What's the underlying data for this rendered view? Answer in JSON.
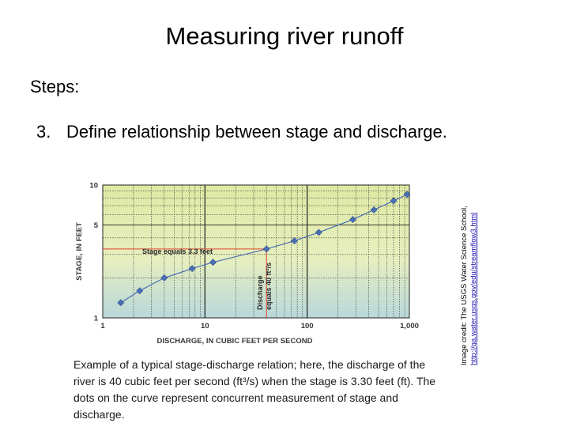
{
  "slide": {
    "title": "Measuring river runoff",
    "steps_label": "Steps:",
    "step3_number": "3.",
    "step3_text": "Define relationship between stage and discharge.",
    "credit_line1": "Image credit: The USGS Water Science School,",
    "credit_link": "http://ga.water.usgs.gov/edu/streamflow3.html",
    "caption": "Example of a typical stage-discharge relation; here, the discharge of the river is 40 cubic feet per second (ft³/s) when the stage is 3.30 feet (ft). The dots on the curve represent concurrent measurement of stage and discharge."
  },
  "chart_data": {
    "type": "line",
    "xlabel": "DISCHARGE, IN CUBIC FEET PER SECOND",
    "ylabel": "STAGE, IN FEET",
    "x_scale": "log",
    "y_scale": "log",
    "xlim": [
      1,
      1000
    ],
    "ylim": [
      1,
      10
    ],
    "x_ticks": [
      {
        "value": 1,
        "label": "1"
      },
      {
        "value": 10,
        "label": "10"
      },
      {
        "value": 100,
        "label": "100"
      },
      {
        "value": 1000,
        "label": "1,000"
      }
    ],
    "y_ticks": [
      {
        "value": 1,
        "label": "1"
      },
      {
        "value": 5,
        "label": "5"
      },
      {
        "value": 10,
        "label": "10"
      }
    ],
    "grid": true,
    "series": [
      {
        "x": [
          1.5,
          2.3,
          4.0,
          7.5,
          12.0,
          40.0,
          75.0,
          130.0,
          280.0,
          450.0,
          700.0,
          950.0
        ],
        "y": [
          1.3,
          1.6,
          2.0,
          2.35,
          2.62,
          3.3,
          3.8,
          4.4,
          5.5,
          6.5,
          7.6,
          8.5
        ],
        "color": "#4a6fb5"
      }
    ],
    "annotations": {
      "stage_label": "Stage equals 3.3 feet",
      "stage_value": 3.3,
      "discharge_label_line1": "Discharge",
      "discharge_label_line2": "equals 40 ft³/s",
      "discharge_value": 40,
      "reference_line_color": "#e0402a"
    }
  }
}
